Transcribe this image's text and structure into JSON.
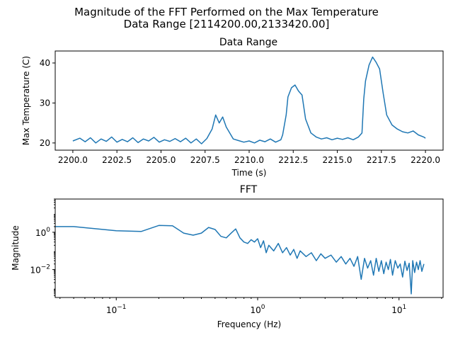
{
  "figure": {
    "title_line1": "Magnitude of the FFT Performed on the Max Temperature",
    "title_line2": "Data Range [2114200.00,2133420.00]"
  },
  "chart_data": [
    {
      "type": "line",
      "title": "Data Range",
      "xlabel": "Time (s)",
      "ylabel": "Max Temperature (C)",
      "xlim": [
        2199.0,
        2221.0
      ],
      "ylim": [
        18.2,
        43.0
      ],
      "xticks": [
        2200.0,
        2202.5,
        2205.0,
        2207.5,
        2210.0,
        2212.5,
        2215.0,
        2217.5,
        2220.0
      ],
      "xtick_labels": [
        "2200.0",
        "2202.5",
        "2205.0",
        "2207.5",
        "2210.0",
        "2212.5",
        "2215.0",
        "2217.5",
        "2220.0"
      ],
      "yticks": [
        20,
        30,
        40
      ],
      "ytick_labels": [
        "20",
        "30",
        "40"
      ],
      "grid": false,
      "series": [
        {
          "color": "#1f77b4",
          "x": [
            2200.0,
            2200.4,
            2200.7,
            2201.0,
            2201.3,
            2201.6,
            2201.9,
            2202.2,
            2202.5,
            2202.8,
            2203.1,
            2203.4,
            2203.7,
            2204.0,
            2204.3,
            2204.6,
            2204.9,
            2205.2,
            2205.5,
            2205.8,
            2206.1,
            2206.4,
            2206.7,
            2207.0,
            2207.3,
            2207.6,
            2207.9,
            2208.1,
            2208.3,
            2208.5,
            2208.7,
            2208.9,
            2209.1,
            2209.4,
            2209.7,
            2210.0,
            2210.3,
            2210.6,
            2210.9,
            2211.2,
            2211.5,
            2211.8,
            2211.9,
            2212.1,
            2212.2,
            2212.4,
            2212.6,
            2212.8,
            2213.0,
            2213.2,
            2213.5,
            2213.8,
            2214.1,
            2214.4,
            2214.7,
            2215.0,
            2215.3,
            2215.6,
            2215.9,
            2216.2,
            2216.4,
            2216.5,
            2216.6,
            2216.8,
            2217.0,
            2217.2,
            2217.4,
            2217.6,
            2217.8,
            2218.1,
            2218.4,
            2218.7,
            2219.0,
            2219.3,
            2219.6,
            2219.9,
            2220.0
          ],
          "y": [
            20.5,
            21.2,
            20.3,
            21.3,
            20.0,
            21.0,
            20.4,
            21.5,
            20.2,
            20.9,
            20.3,
            21.3,
            20.1,
            21.0,
            20.5,
            21.4,
            20.2,
            20.8,
            20.4,
            21.1,
            20.3,
            21.2,
            20.0,
            21.0,
            19.8,
            21.1,
            23.5,
            27.0,
            25.0,
            26.5,
            24.0,
            22.5,
            21.0,
            20.6,
            20.2,
            20.5,
            20.0,
            20.7,
            20.3,
            21.0,
            20.2,
            20.8,
            22.0,
            27.0,
            31.5,
            33.8,
            34.5,
            33.0,
            32.0,
            26.0,
            22.5,
            21.5,
            21.0,
            21.3,
            20.8,
            21.2,
            20.9,
            21.3,
            20.8,
            21.5,
            22.5,
            31.0,
            35.5,
            39.5,
            41.5,
            40.2,
            38.5,
            32.5,
            27.0,
            24.5,
            23.5,
            22.8,
            22.5,
            23.0,
            22.0,
            21.5,
            21.2
          ]
        }
      ]
    },
    {
      "type": "line",
      "title": "FFT",
      "xlabel": "Frequency (Hz)",
      "ylabel": "Magnitude",
      "xscale": "log",
      "yscale": "log",
      "xlim": [
        0.037,
        20.5
      ],
      "ylim": [
        0.00032,
        60.0
      ],
      "xticks": [
        0.1,
        1.0,
        10.0
      ],
      "xtick_labels": [
        {
          "base": "10",
          "exp": "−1"
        },
        {
          "base": "10",
          "exp": "0"
        },
        {
          "base": "10",
          "exp": "1"
        }
      ],
      "yticks": [
        0.01,
        1.0
      ],
      "ytick_labels": [
        {
          "base": "10",
          "exp": "−2"
        },
        {
          "base": "10",
          "exp": "0"
        }
      ],
      "grid": false,
      "series": [
        {
          "color": "#1f77b4",
          "x": [
            0.037,
            0.05,
            0.1,
            0.15,
            0.2,
            0.25,
            0.3,
            0.35,
            0.4,
            0.45,
            0.5,
            0.55,
            0.6,
            0.65,
            0.7,
            0.75,
            0.8,
            0.85,
            0.9,
            0.95,
            1.0,
            1.05,
            1.1,
            1.15,
            1.2,
            1.3,
            1.4,
            1.5,
            1.6,
            1.7,
            1.8,
            1.9,
            2.0,
            2.2,
            2.4,
            2.6,
            2.8,
            3.0,
            3.3,
            3.6,
            3.9,
            4.2,
            4.5,
            4.8,
            5.1,
            5.4,
            5.7,
            6.0,
            6.3,
            6.6,
            6.9,
            7.2,
            7.5,
            7.8,
            8.1,
            8.4,
            8.7,
            9.0,
            9.4,
            9.8,
            10.2,
            10.6,
            11.0,
            11.4,
            11.8,
            12.2,
            12.5,
            12.9,
            13.3,
            13.7,
            14.1,
            14.5,
            15.0
          ],
          "y": [
            2.0,
            2.0,
            1.2,
            1.1,
            2.3,
            2.2,
            0.9,
            0.7,
            0.9,
            1.8,
            1.4,
            0.6,
            0.5,
            0.9,
            1.5,
            0.5,
            0.3,
            0.25,
            0.4,
            0.3,
            0.45,
            0.15,
            0.35,
            0.08,
            0.2,
            0.1,
            0.25,
            0.08,
            0.15,
            0.06,
            0.12,
            0.04,
            0.1,
            0.05,
            0.08,
            0.03,
            0.07,
            0.04,
            0.06,
            0.025,
            0.05,
            0.02,
            0.04,
            0.015,
            0.05,
            0.003,
            0.04,
            0.012,
            0.03,
            0.005,
            0.04,
            0.008,
            0.03,
            0.006,
            0.025,
            0.01,
            0.035,
            0.005,
            0.03,
            0.012,
            0.02,
            0.004,
            0.028,
            0.009,
            0.022,
            0.0005,
            0.03,
            0.007,
            0.025,
            0.01,
            0.03,
            0.008,
            0.02
          ]
        }
      ]
    }
  ]
}
